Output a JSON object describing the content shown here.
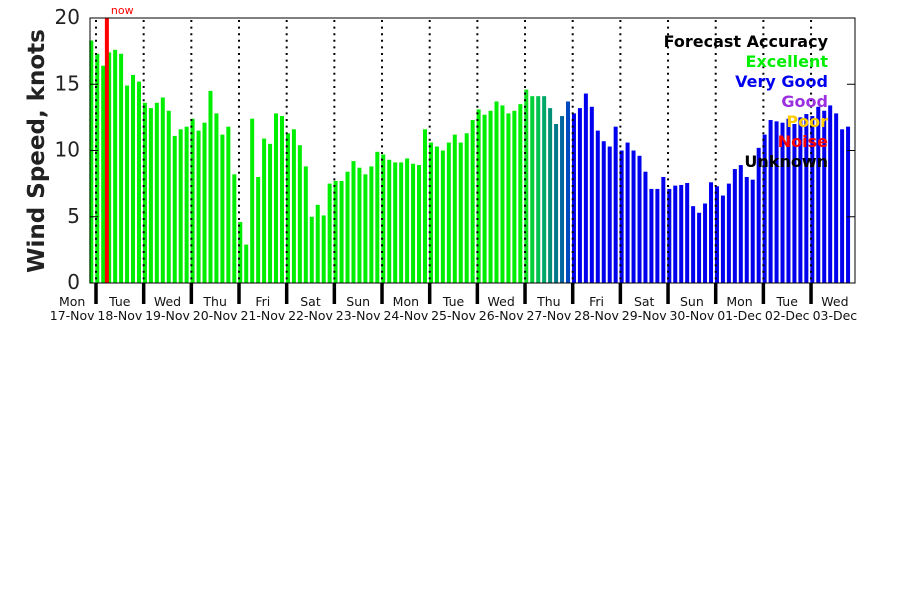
{
  "chart_data": {
    "type": "bar",
    "title": "",
    "ylabel": "Wind Speed, knots",
    "xlabel": "",
    "ylim": [
      0,
      20
    ],
    "yticks": [
      "0",
      "5",
      "10",
      "15",
      "20"
    ],
    "bars_per_day": 8,
    "days": [
      {
        "dow": "Mon",
        "date": "17-Nov"
      },
      {
        "dow": "Tue",
        "date": "18-Nov"
      },
      {
        "dow": "Wed",
        "date": "19-Nov"
      },
      {
        "dow": "Thu",
        "date": "20-Nov"
      },
      {
        "dow": "Fri",
        "date": "21-Nov"
      },
      {
        "dow": "Sat",
        "date": "22-Nov"
      },
      {
        "dow": "Sun",
        "date": "23-Nov"
      },
      {
        "dow": "Mon",
        "date": "24-Nov"
      },
      {
        "dow": "Tue",
        "date": "25-Nov"
      },
      {
        "dow": "Wed",
        "date": "26-Nov"
      },
      {
        "dow": "Thu",
        "date": "27-Nov"
      },
      {
        "dow": "Fri",
        "date": "28-Nov"
      },
      {
        "dow": "Sat",
        "date": "29-Nov"
      },
      {
        "dow": "Sun",
        "date": "30-Nov"
      },
      {
        "dow": "Mon",
        "date": "01-Dec"
      },
      {
        "dow": "Tue",
        "date": "02-Dec"
      },
      {
        "dow": "Wed",
        "date": "03-Dec"
      }
    ],
    "values": [
      18.3,
      17.3,
      16.4,
      17.4,
      17.6,
      17.3,
      14.9,
      15.7,
      15.2,
      13.6,
      13.2,
      13.6,
      14.0,
      13.0,
      11.1,
      11.6,
      11.8,
      12.4,
      11.5,
      12.1,
      14.5,
      12.8,
      11.2,
      11.8,
      8.2,
      4.6,
      2.9,
      12.4,
      8.0,
      10.9,
      10.5,
      12.8,
      12.6,
      11.3,
      11.6,
      10.4,
      8.8,
      5.0,
      5.9,
      5.1,
      7.5,
      7.7,
      7.7,
      8.4,
      9.2,
      8.7,
      8.2,
      8.8,
      9.9,
      9.7,
      9.3,
      9.1,
      9.1,
      9.4,
      9.0,
      8.9,
      11.6,
      10.6,
      10.3,
      10.0,
      10.6,
      11.2,
      10.6,
      11.3,
      12.3,
      13.1,
      12.7,
      13.0,
      13.7,
      13.4,
      12.8,
      13.0,
      13.5,
      14.6,
      14.1,
      14.1,
      14.1,
      13.2,
      12.0,
      12.6,
      13.7,
      12.8,
      13.2,
      14.3,
      13.3,
      11.5,
      10.7,
      10.3,
      11.8,
      10.0,
      10.6,
      10.0,
      9.6,
      8.4,
      7.1,
      7.1,
      8.0,
      7.1,
      7.35,
      7.4,
      7.55,
      5.8,
      5.3,
      6.0,
      7.6,
      7.3,
      6.6,
      7.5,
      8.6,
      8.9,
      8.0,
      7.8,
      10.2,
      11.2,
      12.3,
      12.2,
      12.1,
      12.4,
      12.0,
      12.5,
      12.75,
      12.6,
      13.3,
      13.0,
      13.4,
      12.8,
      11.6,
      11.8
    ],
    "colors": {
      "excellent": "#00ee00",
      "very_good": "#0000ee"
    },
    "blend_start_index": 73,
    "blend_colors": [
      "#10e020",
      "#00d038",
      "#00c050",
      "#00a868",
      "#009078",
      "#007a8a",
      "#0064a0",
      "#0048c0"
    ],
    "now_marker": {
      "label": "now",
      "bar_index": 3,
      "color": "#ff0000"
    },
    "legend": {
      "title": "Forecast Accuracy",
      "placement": "top-right",
      "items": [
        {
          "label": "Excellent",
          "color": "#00ee00"
        },
        {
          "label": "Very Good",
          "color": "#0000ee"
        },
        {
          "label": "Good",
          "color": "#9b30e0"
        },
        {
          "label": "Poor",
          "color": "#ffcc00"
        },
        {
          "label": "Noise",
          "color": "#ff0000"
        },
        {
          "label": "Unknown",
          "color": "#000000"
        }
      ]
    }
  }
}
